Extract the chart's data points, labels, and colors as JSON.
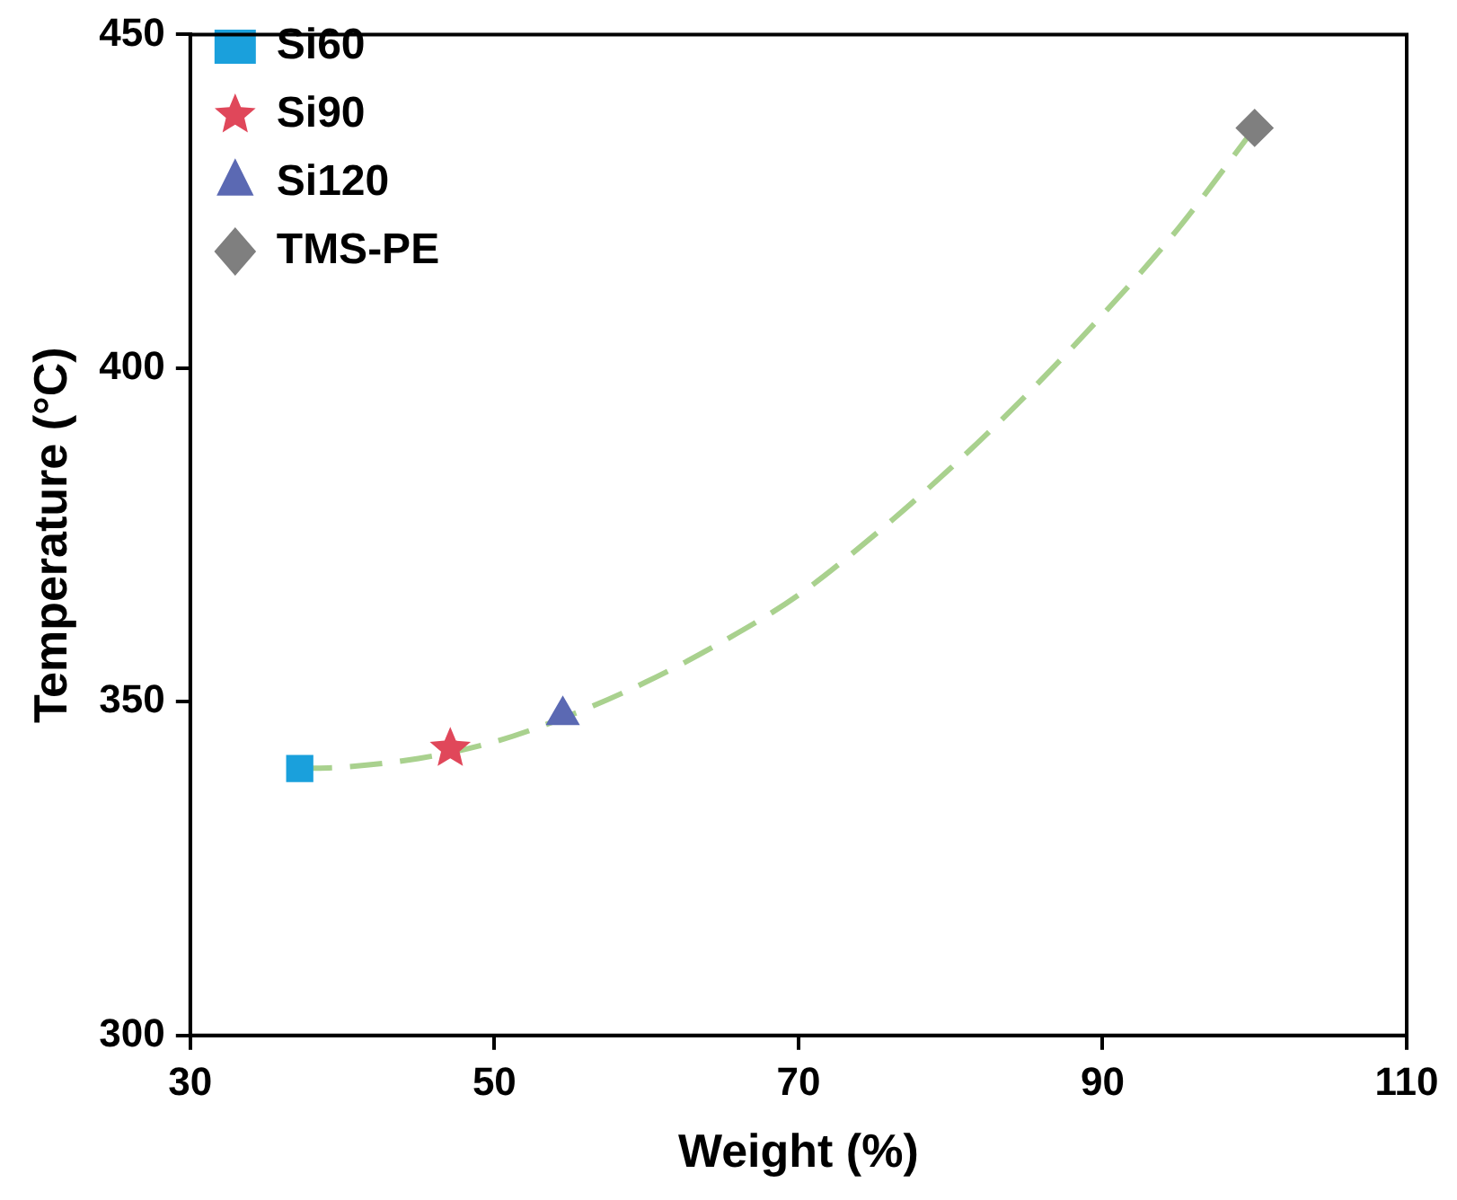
{
  "chart_data": {
    "type": "scatter",
    "xlabel": "Weight (%)",
    "ylabel": "Temperature (°C)",
    "xlim": [
      30,
      110
    ],
    "xticks": [
      30,
      50,
      70,
      90,
      110
    ],
    "ylim": [
      300,
      450
    ],
    "yticks": [
      300,
      350,
      400,
      450
    ],
    "grid": false,
    "legend": "top left",
    "series": [
      {
        "name": "Si60",
        "type": "scatter",
        "marker": "square",
        "color": "#1aa0dc",
        "x": [
          37.2
        ],
        "values": [
          340
        ]
      },
      {
        "name": "Si90",
        "type": "scatter",
        "marker": "star",
        "color": "#e0475a",
        "x": [
          47.1
        ],
        "values": [
          343
        ]
      },
      {
        "name": "Si120",
        "type": "scatter",
        "marker": "triangle",
        "color": "#5b69b3",
        "x": [
          54.5
        ],
        "values": [
          348
        ]
      },
      {
        "name": "TMS-PE",
        "type": "scatter",
        "marker": "diamond",
        "color": "#7f7f7f",
        "x": [
          100
        ],
        "values": [
          436
        ]
      },
      {
        "type": "line",
        "marker": "none",
        "line_style": "dashed",
        "color": "#a9d18e",
        "x": [
          37.2,
          40,
          45,
          50,
          55,
          60,
          65,
          70,
          75,
          80,
          85,
          90,
          95,
          100
        ],
        "values": [
          340,
          340.2,
          341.5,
          344,
          348,
          353,
          359,
          366,
          375,
          385,
          396,
          408,
          421,
          436
        ]
      }
    ]
  }
}
